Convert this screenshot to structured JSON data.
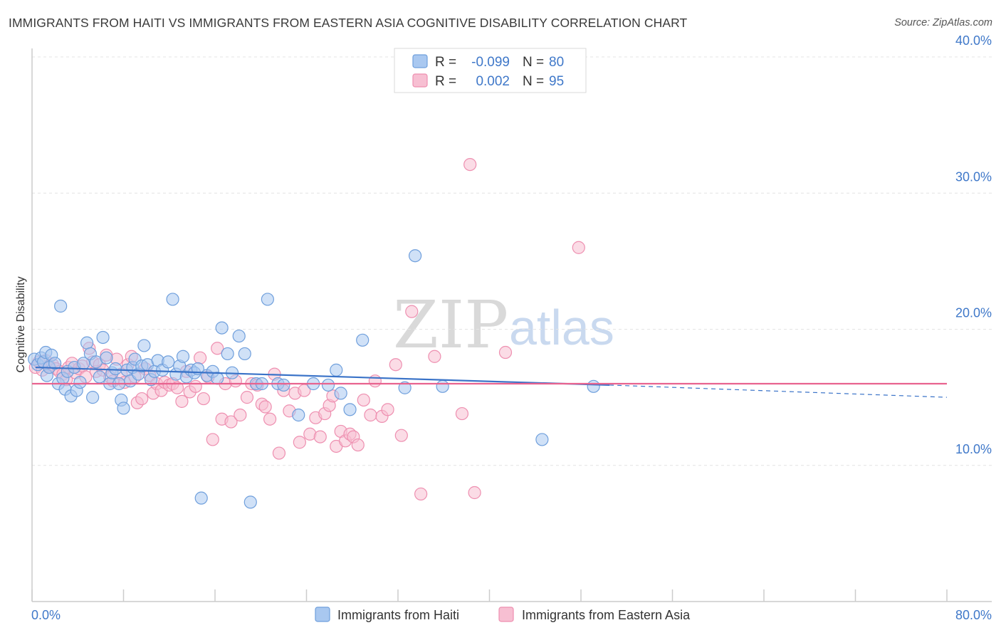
{
  "chart_data": {
    "type": "scatter",
    "title": "IMMIGRANTS FROM HAITI VS IMMIGRANTS FROM EASTERN ASIA COGNITIVE DISABILITY CORRELATION CHART",
    "source": "Source: ZipAtlas.com",
    "ylabel": "Cognitive Disability",
    "xlim": [
      0,
      80
    ],
    "ylim": [
      0,
      40
    ],
    "x_tick_labels": [
      "0.0%",
      "80.0%"
    ],
    "y_ticks": [
      10,
      20,
      30,
      40
    ],
    "y_tick_labels": [
      "10.0%",
      "20.0%",
      "30.0%",
      "40.0%"
    ],
    "watermark": [
      "ZIP",
      "atlas"
    ],
    "legend": [
      {
        "r_label": "R =",
        "r_value": "-0.099",
        "n_label": "N =",
        "n_value": "80"
      },
      {
        "r_label": "R =",
        "r_value": "0.002",
        "n_label": "N =",
        "n_value": "95"
      }
    ],
    "series": [
      {
        "name": "Immigrants from Haiti",
        "color": "#6f9fdc",
        "fill": "#a9c8f0",
        "line_color": "#3a73c8",
        "trend": {
          "x1": 0.3,
          "y1": 17.2,
          "x2": 50.5,
          "y2": 15.9,
          "x_dash_end": 80,
          "y_dash_end": 15.0
        },
        "points": [
          [
            0.2,
            17.8
          ],
          [
            0.5,
            17.4
          ],
          [
            0.8,
            17.9
          ],
          [
            1.0,
            17.6
          ],
          [
            1.2,
            18.3
          ],
          [
            1.3,
            16.6
          ],
          [
            1.5,
            17.2
          ],
          [
            1.7,
            18.1
          ],
          [
            2.0,
            17.5
          ],
          [
            2.3,
            16.0
          ],
          [
            2.5,
            21.7
          ],
          [
            2.7,
            16.4
          ],
          [
            2.9,
            15.6
          ],
          [
            3.1,
            16.9
          ],
          [
            3.4,
            15.1
          ],
          [
            3.7,
            17.2
          ],
          [
            3.9,
            15.5
          ],
          [
            4.2,
            16.1
          ],
          [
            4.5,
            17.5
          ],
          [
            4.8,
            19.0
          ],
          [
            5.1,
            18.2
          ],
          [
            5.3,
            15.0
          ],
          [
            5.6,
            17.6
          ],
          [
            5.9,
            16.5
          ],
          [
            6.2,
            19.4
          ],
          [
            6.5,
            17.9
          ],
          [
            6.8,
            16.0
          ],
          [
            7.0,
            16.8
          ],
          [
            7.3,
            17.1
          ],
          [
            7.6,
            16.0
          ],
          [
            7.8,
            14.8
          ],
          [
            8.0,
            14.2
          ],
          [
            8.3,
            17.0
          ],
          [
            8.6,
            16.2
          ],
          [
            8.8,
            17.2
          ],
          [
            9.0,
            17.8
          ],
          [
            9.3,
            16.7
          ],
          [
            9.6,
            17.3
          ],
          [
            9.8,
            18.8
          ],
          [
            10.1,
            17.4
          ],
          [
            10.4,
            16.3
          ],
          [
            10.7,
            16.9
          ],
          [
            11.0,
            17.7
          ],
          [
            11.4,
            17.0
          ],
          [
            11.9,
            17.6
          ],
          [
            12.3,
            22.2
          ],
          [
            12.6,
            16.7
          ],
          [
            12.9,
            17.3
          ],
          [
            13.2,
            18.0
          ],
          [
            13.5,
            16.5
          ],
          [
            13.9,
            17.0
          ],
          [
            14.2,
            16.8
          ],
          [
            14.5,
            17.1
          ],
          [
            14.8,
            7.6
          ],
          [
            15.3,
            16.6
          ],
          [
            15.8,
            16.9
          ],
          [
            16.2,
            16.4
          ],
          [
            16.6,
            20.1
          ],
          [
            17.1,
            18.2
          ],
          [
            17.5,
            16.8
          ],
          [
            18.1,
            19.5
          ],
          [
            18.6,
            18.2
          ],
          [
            19.1,
            7.3
          ],
          [
            19.6,
            16.0
          ],
          [
            20.1,
            16.0
          ],
          [
            20.6,
            22.2
          ],
          [
            21.5,
            16.0
          ],
          [
            22.0,
            15.9
          ],
          [
            23.3,
            13.7
          ],
          [
            24.6,
            16.0
          ],
          [
            25.9,
            15.9
          ],
          [
            26.6,
            17.0
          ],
          [
            27.0,
            15.3
          ],
          [
            27.8,
            14.1
          ],
          [
            28.9,
            19.2
          ],
          [
            32.6,
            15.7
          ],
          [
            33.5,
            25.4
          ],
          [
            35.9,
            15.8
          ],
          [
            44.6,
            11.9
          ],
          [
            49.1,
            15.8
          ]
        ]
      },
      {
        "name": "Immigrants from Eastern Asia",
        "color": "#ee8fb0",
        "fill": "#f7bfd2",
        "line_color": "#e8638f",
        "trend": {
          "x1": 0,
          "y1": 16.0,
          "x2": 80,
          "y2": 16.0
        },
        "points": [
          [
            0.3,
            17.2
          ],
          [
            0.6,
            17.6
          ],
          [
            0.9,
            17.0
          ],
          [
            1.2,
            17.7
          ],
          [
            1.5,
            17.3
          ],
          [
            1.8,
            17.4
          ],
          [
            2.1,
            17.1
          ],
          [
            2.4,
            16.9
          ],
          [
            2.7,
            16.7
          ],
          [
            3.0,
            16.3
          ],
          [
            3.2,
            17.2
          ],
          [
            3.5,
            17.5
          ],
          [
            3.8,
            16.8
          ],
          [
            4.1,
            17.1
          ],
          [
            4.4,
            17.3
          ],
          [
            4.7,
            16.5
          ],
          [
            5.0,
            18.6
          ],
          [
            5.3,
            17.6
          ],
          [
            5.6,
            16.9
          ],
          [
            5.9,
            17.4
          ],
          [
            6.2,
            17.0
          ],
          [
            6.5,
            18.1
          ],
          [
            6.8,
            16.5
          ],
          [
            7.1,
            16.2
          ],
          [
            7.4,
            17.8
          ],
          [
            7.8,
            16.7
          ],
          [
            8.1,
            16.1
          ],
          [
            8.4,
            17.4
          ],
          [
            8.7,
            18.0
          ],
          [
            9.0,
            16.5
          ],
          [
            9.2,
            14.6
          ],
          [
            9.6,
            14.9
          ],
          [
            9.9,
            17.1
          ],
          [
            10.3,
            16.6
          ],
          [
            10.6,
            15.3
          ],
          [
            10.9,
            16.0
          ],
          [
            11.3,
            15.5
          ],
          [
            11.6,
            16.1
          ],
          [
            12.0,
            15.9
          ],
          [
            12.3,
            16.0
          ],
          [
            12.7,
            15.7
          ],
          [
            13.1,
            14.7
          ],
          [
            13.5,
            16.9
          ],
          [
            13.8,
            15.4
          ],
          [
            14.3,
            15.8
          ],
          [
            14.7,
            17.9
          ],
          [
            15.0,
            14.9
          ],
          [
            15.4,
            16.5
          ],
          [
            15.8,
            11.9
          ],
          [
            16.2,
            18.6
          ],
          [
            16.6,
            13.4
          ],
          [
            16.9,
            16.0
          ],
          [
            17.4,
            13.2
          ],
          [
            17.8,
            16.2
          ],
          [
            18.2,
            13.7
          ],
          [
            18.8,
            15.0
          ],
          [
            19.2,
            16.0
          ],
          [
            19.7,
            15.9
          ],
          [
            20.1,
            14.5
          ],
          [
            20.4,
            14.3
          ],
          [
            20.8,
            13.4
          ],
          [
            21.2,
            16.7
          ],
          [
            21.6,
            10.9
          ],
          [
            22.0,
            15.5
          ],
          [
            22.5,
            14.0
          ],
          [
            23.0,
            15.3
          ],
          [
            23.4,
            11.7
          ],
          [
            23.8,
            15.5
          ],
          [
            24.3,
            12.3
          ],
          [
            24.8,
            13.5
          ],
          [
            25.2,
            12.1
          ],
          [
            25.6,
            13.8
          ],
          [
            26.0,
            14.4
          ],
          [
            26.3,
            15.1
          ],
          [
            26.6,
            11.4
          ],
          [
            27.0,
            12.5
          ],
          [
            27.4,
            11.8
          ],
          [
            27.8,
            12.3
          ],
          [
            28.1,
            12.1
          ],
          [
            28.5,
            11.5
          ],
          [
            29.0,
            14.8
          ],
          [
            29.6,
            13.7
          ],
          [
            30.0,
            16.2
          ],
          [
            30.6,
            13.6
          ],
          [
            31.1,
            14.1
          ],
          [
            31.8,
            17.4
          ],
          [
            32.3,
            12.2
          ],
          [
            33.2,
            21.3
          ],
          [
            34.0,
            7.9
          ],
          [
            35.2,
            18.0
          ],
          [
            37.6,
            13.8
          ],
          [
            38.3,
            32.1
          ],
          [
            38.7,
            8.0
          ],
          [
            41.4,
            18.3
          ],
          [
            47.8,
            26.0
          ]
        ]
      }
    ]
  }
}
